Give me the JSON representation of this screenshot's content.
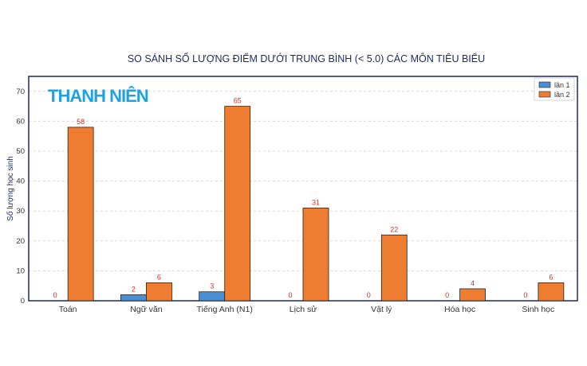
{
  "logo_text": "THANH NIÊN",
  "chart_data": {
    "type": "bar",
    "title": "SO SÁNH SỐ LƯỢNG ĐIỂM DƯỚI TRUNG BÌNH (< 5.0) CÁC MÔN TIÊU BIỂU",
    "xlabel": "",
    "ylabel": "Số lượng học sinh",
    "categories": [
      "Toán",
      "Ngữ văn",
      "Tiếng Anh (N1)",
      "Lịch sử",
      "Vật lý",
      "Hóa học",
      "Sinh học"
    ],
    "series": [
      {
        "name": "lần 1",
        "color": "#4a8fd4",
        "values": [
          0,
          2,
          3,
          0,
          0,
          0,
          0
        ]
      },
      {
        "name": "lần 2",
        "color": "#ef7d31",
        "values": [
          58,
          6,
          65,
          31,
          22,
          4,
          6
        ]
      }
    ],
    "ylim": [
      0,
      75
    ],
    "yticks": [
      0,
      10,
      20,
      30,
      40,
      50,
      60,
      70
    ],
    "grid": true,
    "legend_position": "top-right",
    "label_color": "#c0392b",
    "frame_color": "#1d2a5c"
  }
}
